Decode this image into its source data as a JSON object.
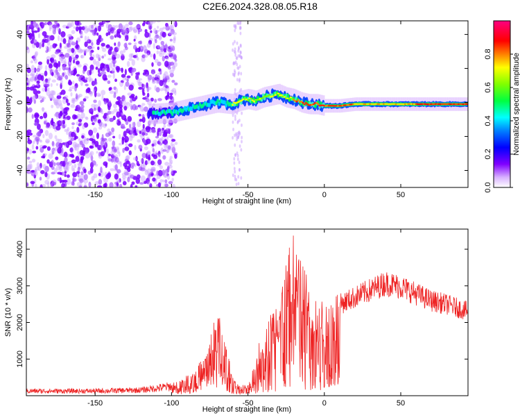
{
  "title": "C2E6.2024.328.08.05.R18",
  "chart_data": [
    {
      "id": "spectrogram",
      "type": "heatmap",
      "xlabel": "Height of straight line (km)",
      "ylabel": "Frequency (Hz)",
      "xlim": [
        -195,
        94
      ],
      "ylim": [
        -50,
        48
      ],
      "xticks": [
        -150,
        -100,
        -50,
        0,
        50
      ],
      "yticks": [
        -40,
        -20,
        0,
        20,
        40
      ],
      "noise_region_xmax": -105,
      "noise_streak_x": [
        -60,
        -54
      ],
      "ridge": {
        "x": [
          -115,
          -100,
          -90,
          -80,
          -70,
          -60,
          -55,
          -50,
          -45,
          -40,
          -35,
          -30,
          -25,
          -20,
          -15,
          -10,
          -5,
          0,
          10,
          20,
          30,
          40,
          50,
          60,
          70,
          80,
          94
        ],
        "freq": [
          -7,
          -6,
          -4,
          -2,
          0,
          -1,
          1,
          2,
          1,
          3,
          4,
          5,
          3,
          2,
          0,
          -1,
          -1,
          -2,
          -2,
          -1,
          -1,
          -1,
          -1,
          -1,
          -1,
          -1,
          -1
        ]
      },
      "colorbar": {
        "label": "Normalized spectral amplitude",
        "range": [
          0,
          1
        ],
        "ticks": [
          0.0,
          0.2,
          0.4,
          0.6,
          0.8
        ],
        "tick_labels": [
          "0.0",
          "0.2",
          "0.4",
          "0.6",
          "0.8"
        ],
        "colors": [
          "#ffffff",
          "#8000ff",
          "#0000ff",
          "#00ffff",
          "#00ff00",
          "#ffff00",
          "#ff8000",
          "#ff0000",
          "#ff0080"
        ]
      }
    },
    {
      "id": "snr",
      "type": "line",
      "xlabel": "Height of straight line (km)",
      "ylabel": "SNR (10 * v/v)",
      "xlim": [
        -195,
        94
      ],
      "ylim": [
        0,
        4550
      ],
      "xticks": [
        -150,
        -100,
        -50,
        0,
        50
      ],
      "yticks": [
        1000,
        2000,
        3000,
        4000
      ],
      "color": "#ee2222",
      "envelope": {
        "x": [
          -195,
          -150,
          -120,
          -100,
          -90,
          -80,
          -75,
          -70,
          -65,
          -60,
          -55,
          -50,
          -45,
          -40,
          -35,
          -30,
          -25,
          -20,
          -15,
          -10,
          -5,
          0,
          5,
          10,
          15,
          20,
          30,
          40,
          50,
          60,
          70,
          80,
          94
        ],
        "y": [
          150,
          150,
          180,
          300,
          500,
          900,
          1500,
          2200,
          1400,
          500,
          300,
          250,
          900,
          1700,
          2000,
          2500,
          3200,
          4000,
          3500,
          2800,
          2400,
          2300,
          2400,
          2600,
          2700,
          2800,
          3000,
          3200,
          3100,
          2900,
          2700,
          2600,
          2400
        ]
      }
    }
  ]
}
